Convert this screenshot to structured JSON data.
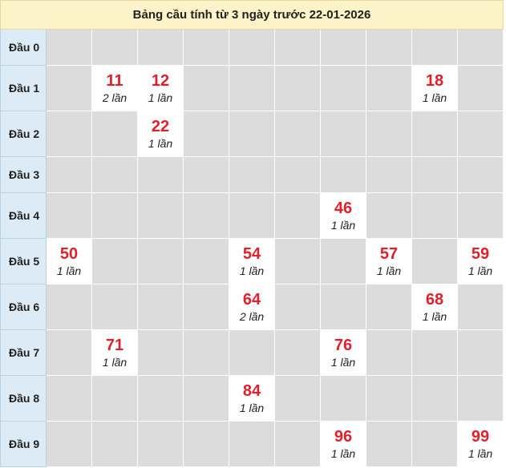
{
  "title": "Bảng cầu tính từ 3 ngày trước 22-01-2026",
  "rows": [
    {
      "label": "Đầu 0",
      "cells": [
        null,
        null,
        null,
        null,
        null,
        null,
        null,
        null,
        null,
        null
      ]
    },
    {
      "label": "Đầu 1",
      "cells": [
        null,
        {
          "number": "11",
          "count": "2 lần"
        },
        {
          "number": "12",
          "count": "1 lần"
        },
        null,
        null,
        null,
        null,
        null,
        {
          "number": "18",
          "count": "1 lần"
        },
        null
      ]
    },
    {
      "label": "Đầu 2",
      "cells": [
        null,
        null,
        {
          "number": "22",
          "count": "1 lần"
        },
        null,
        null,
        null,
        null,
        null,
        null,
        null
      ]
    },
    {
      "label": "Đầu 3",
      "cells": [
        null,
        null,
        null,
        null,
        null,
        null,
        null,
        null,
        null,
        null
      ]
    },
    {
      "label": "Đầu 4",
      "cells": [
        null,
        null,
        null,
        null,
        null,
        null,
        {
          "number": "46",
          "count": "1 lần"
        },
        null,
        null,
        null
      ]
    },
    {
      "label": "Đầu 5",
      "cells": [
        {
          "number": "50",
          "count": "1 lần"
        },
        null,
        null,
        null,
        {
          "number": "54",
          "count": "1 lần"
        },
        null,
        null,
        {
          "number": "57",
          "count": "1 lần"
        },
        null,
        {
          "number": "59",
          "count": "1 lần"
        }
      ]
    },
    {
      "label": "Đầu 6",
      "cells": [
        null,
        null,
        null,
        null,
        {
          "number": "64",
          "count": "2 lần"
        },
        null,
        null,
        null,
        {
          "number": "68",
          "count": "1 lần"
        },
        null
      ]
    },
    {
      "label": "Đầu 7",
      "cells": [
        null,
        {
          "number": "71",
          "count": "1 lần"
        },
        null,
        null,
        null,
        null,
        {
          "number": "76",
          "count": "1 lần"
        },
        null,
        null,
        null
      ]
    },
    {
      "label": "Đầu 8",
      "cells": [
        null,
        null,
        null,
        null,
        {
          "number": "84",
          "count": "1 lần"
        },
        null,
        null,
        null,
        null,
        null
      ]
    },
    {
      "label": "Đầu 9",
      "cells": [
        null,
        null,
        null,
        null,
        null,
        null,
        {
          "number": "96",
          "count": "1 lần"
        },
        null,
        null,
        {
          "number": "99",
          "count": "1 lần"
        }
      ]
    }
  ]
}
